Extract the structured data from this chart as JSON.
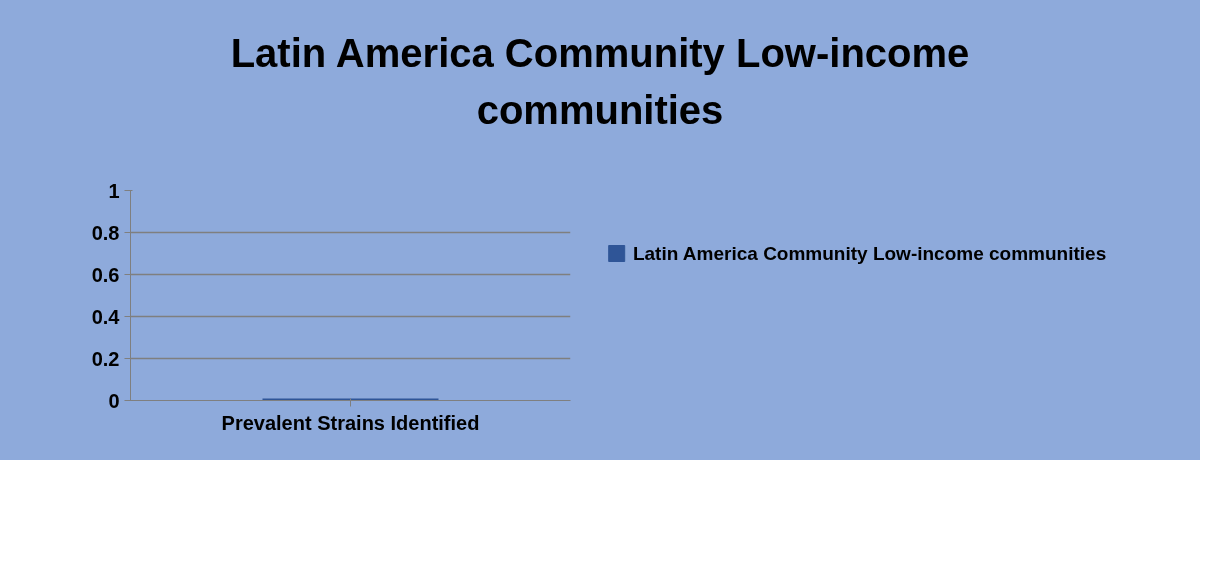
{
  "chart_data": {
    "type": "bar",
    "title": "Latin America Community Low-income communities",
    "categories": [
      "Prevalent Strains Identified"
    ],
    "series": [
      {
        "name": "Latin America Community Low-income communities",
        "color": "#2f5597",
        "values": [
          0
        ]
      }
    ],
    "ylim": [
      0,
      1
    ],
    "yticks": [
      0,
      0.2,
      0.4,
      0.6,
      0.8,
      1
    ],
    "grid": "y",
    "legend": "right"
  }
}
